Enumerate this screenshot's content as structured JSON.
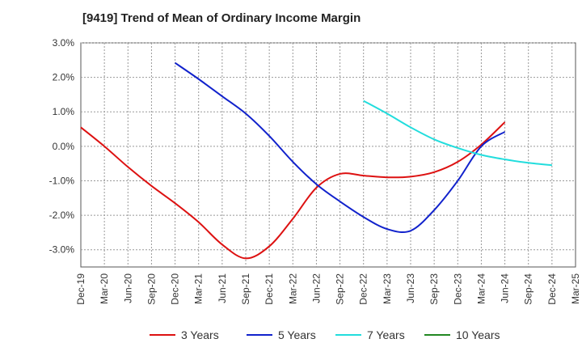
{
  "chart_data": {
    "type": "line",
    "title": "[9419]  Trend of Mean of Ordinary Income Margin",
    "xlabel": "",
    "ylabel": "",
    "ylim": [
      -3.5,
      3.0
    ],
    "y_ticks": [
      3.0,
      2.0,
      1.0,
      0.0,
      -1.0,
      -2.0,
      -3.0
    ],
    "y_tick_labels": [
      "3.0%",
      "2.0%",
      "1.0%",
      "0.0%",
      "-1.0%",
      "-2.0%",
      "-3.0%"
    ],
    "x_tick_labels": [
      "Dec-19",
      "Mar-20",
      "Jun-20",
      "Sep-20",
      "Dec-20",
      "Mar-21",
      "Jun-21",
      "Sep-21",
      "Dec-21",
      "Mar-22",
      "Jun-22",
      "Sep-22",
      "Dec-22",
      "Mar-23",
      "Jun-23",
      "Sep-23",
      "Dec-23",
      "Mar-24",
      "Jun-24",
      "Sep-24",
      "Dec-24",
      "Mar-25"
    ],
    "grid": true,
    "legend_position": "bottom",
    "series": [
      {
        "name": "3 Years",
        "color": "#dd1111",
        "values": [
          0.55,
          0.0,
          -0.6,
          -1.15,
          -1.65,
          -2.2,
          -2.85,
          -3.25,
          -2.9,
          -2.1,
          -1.2,
          -0.8,
          -0.85,
          -0.9,
          -0.88,
          -0.75,
          -0.45,
          0.05,
          0.7
        ]
      },
      {
        "name": "5 Years",
        "color": "#1122cc",
        "start_index": 4,
        "values": [
          2.42,
          1.95,
          1.45,
          0.95,
          0.3,
          -0.45,
          -1.1,
          -1.6,
          -2.05,
          -2.4,
          -2.45,
          -1.85,
          -1.0,
          0.0,
          0.42
        ]
      },
      {
        "name": "7 Years",
        "color": "#22dddd",
        "start_index": 12,
        "values": [
          1.32,
          0.95,
          0.55,
          0.2,
          -0.05,
          -0.25,
          -0.38,
          -0.48,
          -0.55
        ]
      },
      {
        "name": "10 Years",
        "color": "#228822",
        "values": []
      }
    ]
  }
}
